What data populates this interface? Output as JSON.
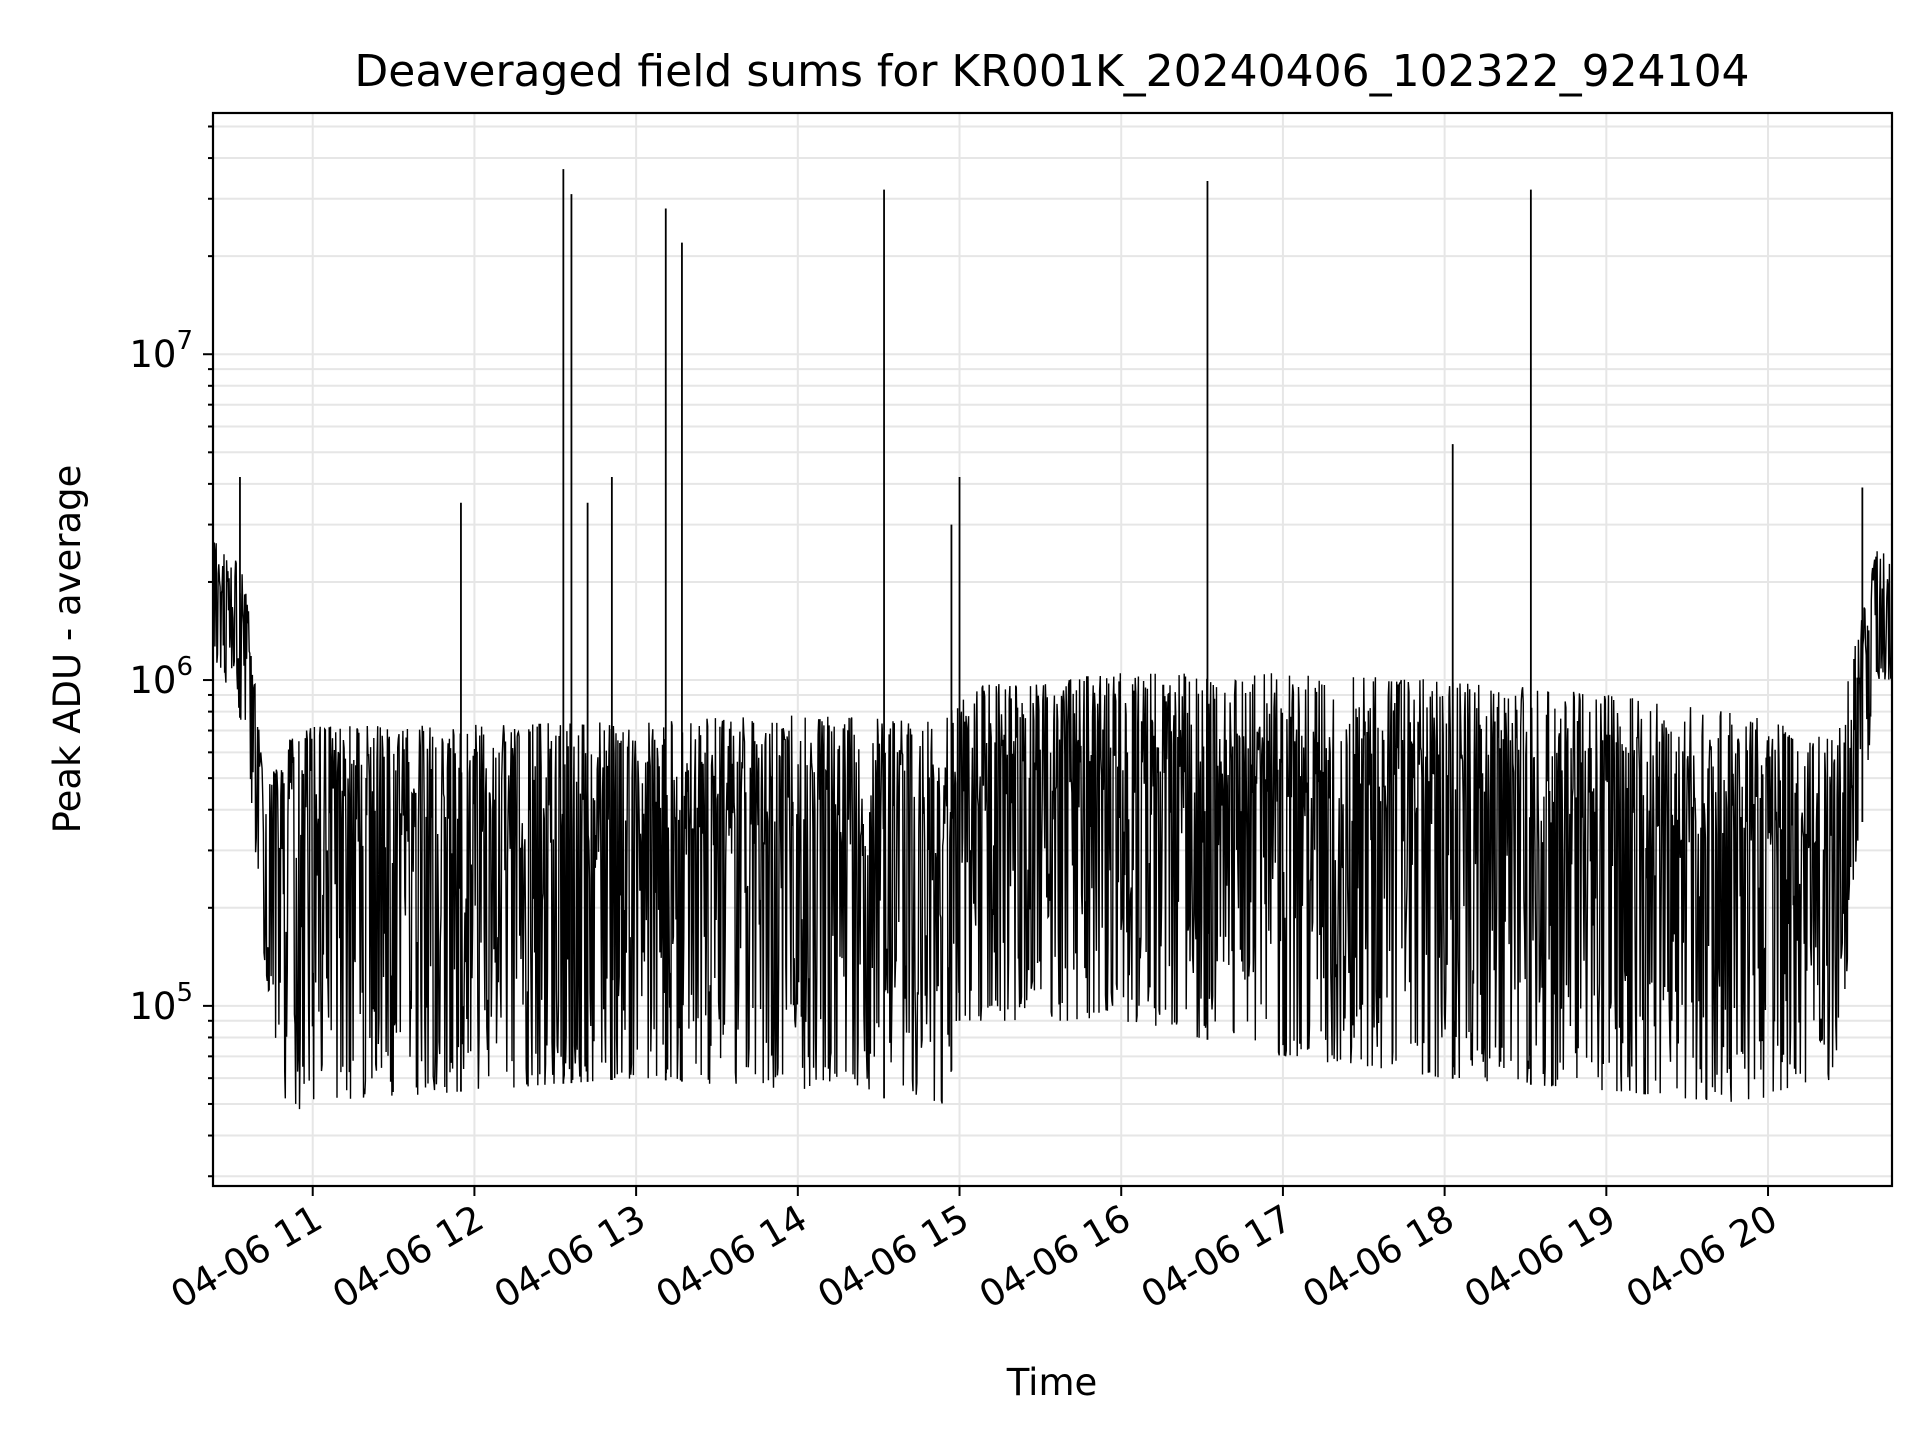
{
  "chart_data": {
    "type": "line",
    "title": "Deaveraged field sums for KR001K_20240406_102322_924104",
    "xlabel": "Time",
    "ylabel": "Peak ADU - average",
    "x_axis": {
      "type": "time",
      "range": [
        "04-06 10:23",
        "04-06 20:46"
      ],
      "ticks": [
        "04-06 11",
        "04-06 12",
        "04-06 13",
        "04-06 14",
        "04-06 15",
        "04-06 16",
        "04-06 17",
        "04-06 18",
        "04-06 19",
        "04-06 20"
      ]
    },
    "y_axis": {
      "scale": "log",
      "range": [
        28000,
        55000000
      ],
      "major_ticks": [
        {
          "value": 100000,
          "base": "10",
          "exponent": "5"
        },
        {
          "value": 1000000,
          "base": "10",
          "exponent": "6"
        },
        {
          "value": 10000000,
          "base": "10",
          "exponent": "7"
        }
      ]
    },
    "grid": true,
    "series": [
      {
        "color": "#000000",
        "trend": {
          "time": [
            "10:23",
            "10:35",
            "10:42",
            "10:50",
            "11:00",
            "12:00",
            "13:00",
            "14:00",
            "14:55",
            "15:00",
            "16:00",
            "17:00",
            "18:00",
            "19:00",
            "19:50",
            "20:25",
            "20:34",
            "20:40",
            "20:46"
          ],
          "low": [
            1200000,
            700000,
            140000,
            45000,
            50000,
            55000,
            60000,
            55000,
            50000,
            90000,
            90000,
            70000,
            60000,
            55000,
            50000,
            60000,
            300000,
            1000000,
            1000000
          ],
          "high": [
            2700000,
            2200000,
            450000,
            650000,
            720000,
            730000,
            750000,
            780000,
            750000,
            950000,
            1050000,
            1050000,
            1000000,
            900000,
            800000,
            650000,
            1500000,
            2500000,
            2400000
          ]
        },
        "spikes": [
          {
            "time": "10:33",
            "value": 4200000
          },
          {
            "time": "11:55",
            "value": 3500000
          },
          {
            "time": "12:33",
            "value": 37000000
          },
          {
            "time": "12:36",
            "value": 31000000
          },
          {
            "time": "12:42",
            "value": 3500000
          },
          {
            "time": "12:51",
            "value": 4200000
          },
          {
            "time": "13:11",
            "value": 28000000
          },
          {
            "time": "13:17",
            "value": 22000000
          },
          {
            "time": "14:32",
            "value": 32000000
          },
          {
            "time": "14:57",
            "value": 3000000
          },
          {
            "time": "15:00",
            "value": 4200000
          },
          {
            "time": "16:32",
            "value": 34000000
          },
          {
            "time": "18:03",
            "value": 5300000
          },
          {
            "time": "18:32",
            "value": 32000000
          },
          {
            "time": "20:35",
            "value": 3900000
          }
        ]
      }
    ]
  }
}
